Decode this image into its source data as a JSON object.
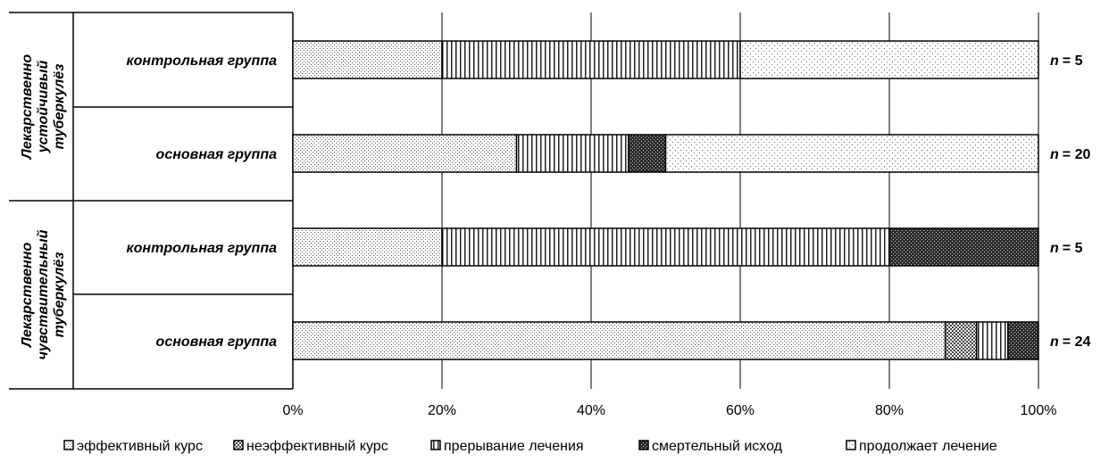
{
  "chart_data": {
    "type": "bar",
    "orientation": "horizontal",
    "stacked": "percent",
    "groups": [
      {
        "label_lines": [
          "Лекарственно",
          "устойчивый",
          "туберкулёз"
        ],
        "rows": [
          {
            "label": "контрольная группа",
            "n_label": "= 5",
            "n_var": "n",
            "values": [
              20,
              0,
              40,
              0,
              40
            ]
          },
          {
            "label": "основная группа",
            "n_label": "= 20",
            "n_var": "n",
            "values": [
              30,
              0,
              15,
              5,
              50
            ]
          }
        ]
      },
      {
        "label_lines": [
          "Лекарственно",
          "чувствительный",
          "туберкулёз"
        ],
        "rows": [
          {
            "label": "контрольная группа",
            "n_label": "= 5",
            "n_var": "n",
            "values": [
              20,
              0,
              60,
              20,
              0
            ]
          },
          {
            "label": "основная группа",
            "n_label": "= 24",
            "n_var": "n",
            "values": [
              87.5,
              4.2,
              4.2,
              4.1,
              0
            ]
          }
        ]
      }
    ],
    "series": [
      {
        "name": "эффективный курс",
        "pattern": "fine-dots"
      },
      {
        "name": "неэффективный курс",
        "pattern": "crosshatch"
      },
      {
        "name": "прерывание лечения",
        "pattern": "vertical-lines"
      },
      {
        "name": "смертельный исход",
        "pattern": "dense-dark"
      },
      {
        "name": "продолжает лечение",
        "pattern": "sparse-dots"
      }
    ],
    "x_ticks": [
      "0%",
      "20%",
      "40%",
      "60%",
      "80%",
      "100%"
    ],
    "xlim": [
      0,
      100
    ],
    "grid": "vertical",
    "legend_position": "bottom"
  }
}
